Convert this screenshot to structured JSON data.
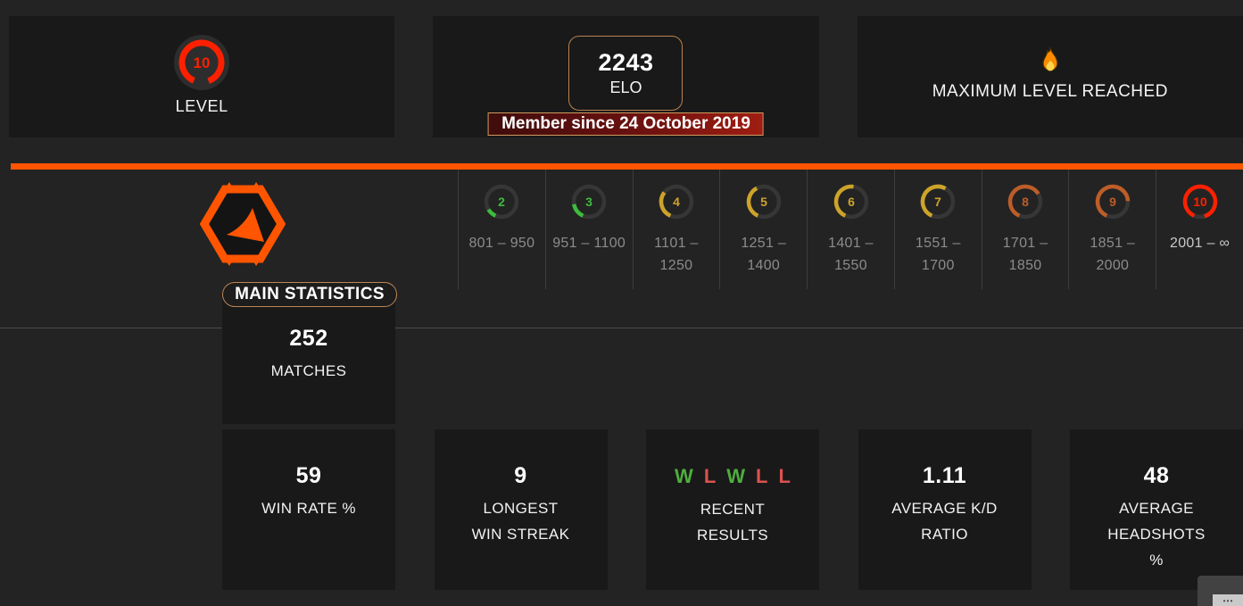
{
  "colors": {
    "accent": "#ff5500",
    "card_bg": "#191919",
    "win": "#4fae3c",
    "loss": "#d9534f",
    "level_green": "#3dbb3d",
    "level_gold": "#cda32a",
    "level_orange": "#bd5d28",
    "level_red": "#fd2000",
    "ring_track": "#363636"
  },
  "top": {
    "level_card": {
      "label": "LEVEL",
      "level": "10",
      "fraction": 0.88,
      "color": "#fd2000"
    },
    "elo_card": {
      "value": "2243",
      "label": "ELO",
      "banner": "Member since 24 October 2019"
    },
    "max_card": {
      "label": "MAXIMUM LEVEL REACHED"
    }
  },
  "level_scale": [
    {
      "level": "2",
      "range": "801 – 950",
      "color": "#3dbb3d",
      "fraction": 0.1
    },
    {
      "level": "3",
      "range": "951 – 1100",
      "color": "#3dbb3d",
      "fraction": 0.16
    },
    {
      "level": "4",
      "range": "1101 –\n1250",
      "color": "#cda32a",
      "fraction": 0.29
    },
    {
      "level": "5",
      "range": "1251 –\n1400",
      "color": "#cda32a",
      "fraction": 0.36
    },
    {
      "level": "6",
      "range": "1401 –\n1550",
      "color": "#cda32a",
      "fraction": 0.46
    },
    {
      "level": "7",
      "range": "1551 –\n1700",
      "color": "#cda32a",
      "fraction": 0.52
    },
    {
      "level": "8",
      "range": "1701 –\n1850",
      "color": "#bd5d28",
      "fraction": 0.6
    },
    {
      "level": "9",
      "range": "1851 –\n2000",
      "color": "#bd5d28",
      "fraction": 0.68
    },
    {
      "level": "10",
      "range": "2001 – ∞",
      "color": "#fd2000",
      "fraction": 0.89,
      "current": true
    }
  ],
  "main_stats": {
    "title": "MAIN STATISTICS",
    "matches_value": "252",
    "matches_label": "MATCHES"
  },
  "stat_cards": [
    {
      "value": "59",
      "label": "WIN RATE %"
    },
    {
      "value": "9",
      "label": "LONGEST\nWIN STREAK"
    },
    {
      "letters": [
        "W",
        "L",
        "W",
        "L",
        "L"
      ],
      "label": "RECENT\nRESULTS"
    },
    {
      "value": "1.11",
      "label": "AVERAGE K/D\nRATIO"
    },
    {
      "value": "48",
      "label": "AVERAGE\nHEADSHOTS\n%"
    }
  ],
  "widget": {
    "more_icon": "⋯"
  }
}
